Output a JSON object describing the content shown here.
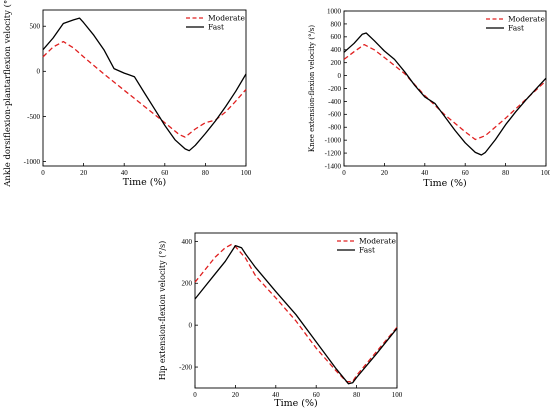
{
  "chart_data": [
    {
      "type": "line",
      "xlabel": "Time (%)",
      "ylabel": "Ankle dorsiflexion-plantarflexion velocity (°/s)",
      "xlim": [
        0,
        100
      ],
      "ylim": [
        -1050,
        680
      ],
      "xticks": [
        0,
        20,
        40,
        60,
        80,
        100
      ],
      "yticks": [
        500,
        0,
        -500,
        -1000
      ],
      "legend": "top-right",
      "series": [
        {
          "name": "Moderate",
          "color": "#e02020",
          "dash": true,
          "points": [
            [
              0,
              160
            ],
            [
              5,
              270
            ],
            [
              10,
              330
            ],
            [
              15,
              260
            ],
            [
              20,
              160
            ],
            [
              30,
              -30
            ],
            [
              40,
              -210
            ],
            [
              50,
              -390
            ],
            [
              60,
              -570
            ],
            [
              67,
              -700
            ],
            [
              70,
              -730
            ],
            [
              75,
              -640
            ],
            [
              80,
              -570
            ],
            [
              85,
              -540
            ],
            [
              90,
              -450
            ],
            [
              95,
              -330
            ],
            [
              100,
              -200
            ]
          ]
        },
        {
          "name": "Fast",
          "color": "#000000",
          "dash": false,
          "points": [
            [
              0,
              240
            ],
            [
              5,
              370
            ],
            [
              10,
              530
            ],
            [
              15,
              570
            ],
            [
              18,
              590
            ],
            [
              20,
              540
            ],
            [
              25,
              400
            ],
            [
              30,
              240
            ],
            [
              35,
              30
            ],
            [
              40,
              -20
            ],
            [
              45,
              -60
            ],
            [
              50,
              -240
            ],
            [
              55,
              -420
            ],
            [
              60,
              -600
            ],
            [
              65,
              -760
            ],
            [
              70,
              -860
            ],
            [
              72,
              -880
            ],
            [
              75,
              -820
            ],
            [
              80,
              -690
            ],
            [
              85,
              -550
            ],
            [
              90,
              -390
            ],
            [
              95,
              -220
            ],
            [
              100,
              -30
            ]
          ]
        }
      ]
    },
    {
      "type": "line",
      "xlabel": "Time (%)",
      "ylabel": "Knee extension-flexion velocity (°/s)",
      "xlim": [
        0,
        100
      ],
      "ylim": [
        -1400,
        1000
      ],
      "xticks": [
        0,
        20,
        40,
        60,
        80,
        100
      ],
      "yticks": [
        1000,
        800,
        600,
        400,
        200,
        0,
        -200,
        -400,
        -600,
        -800,
        -1000,
        -1200,
        -1400
      ],
      "legend": "top-right",
      "series": [
        {
          "name": "Moderate",
          "color": "#e02020",
          "dash": true,
          "points": [
            [
              0,
              250
            ],
            [
              5,
              370
            ],
            [
              10,
              480
            ],
            [
              15,
              400
            ],
            [
              20,
              280
            ],
            [
              30,
              30
            ],
            [
              40,
              -310
            ],
            [
              50,
              -610
            ],
            [
              60,
              -870
            ],
            [
              65,
              -990
            ],
            [
              70,
              -930
            ],
            [
              80,
              -660
            ],
            [
              90,
              -370
            ],
            [
              100,
              -80
            ]
          ]
        },
        {
          "name": "Fast",
          "color": "#000000",
          "dash": false,
          "points": [
            [
              0,
              360
            ],
            [
              5,
              500
            ],
            [
              9,
              640
            ],
            [
              11,
              660
            ],
            [
              15,
              540
            ],
            [
              20,
              380
            ],
            [
              25,
              250
            ],
            [
              30,
              60
            ],
            [
              35,
              -150
            ],
            [
              40,
              -330
            ],
            [
              45,
              -430
            ],
            [
              50,
              -640
            ],
            [
              55,
              -850
            ],
            [
              60,
              -1040
            ],
            [
              65,
              -1190
            ],
            [
              68,
              -1230
            ],
            [
              70,
              -1190
            ],
            [
              75,
              -990
            ],
            [
              80,
              -760
            ],
            [
              85,
              -560
            ],
            [
              90,
              -380
            ],
            [
              95,
              -210
            ],
            [
              100,
              -40
            ]
          ]
        }
      ]
    },
    {
      "type": "line",
      "xlabel": "Time (%)",
      "ylabel": "Hip extension-flexion velocity (°/s)",
      "xlim": [
        0,
        100
      ],
      "ylim": [
        -300,
        440
      ],
      "xticks": [
        0,
        20,
        40,
        60,
        80,
        100
      ],
      "yticks": [
        400,
        200,
        0,
        -200
      ],
      "legend": "top-right",
      "series": [
        {
          "name": "Moderate",
          "color": "#e02020",
          "dash": true,
          "points": [
            [
              0,
              205
            ],
            [
              5,
              265
            ],
            [
              10,
              325
            ],
            [
              15,
              370
            ],
            [
              18,
              385
            ],
            [
              20,
              375
            ],
            [
              25,
              320
            ],
            [
              30,
              235
            ],
            [
              40,
              130
            ],
            [
              50,
              20
            ],
            [
              60,
              -110
            ],
            [
              70,
              -220
            ],
            [
              75,
              -270
            ],
            [
              78,
              -270
            ],
            [
              80,
              -240
            ],
            [
              90,
              -125
            ],
            [
              100,
              -10
            ]
          ]
        },
        {
          "name": "Fast",
          "color": "#000000",
          "dash": false,
          "points": [
            [
              0,
              125
            ],
            [
              5,
              185
            ],
            [
              10,
              245
            ],
            [
              15,
              305
            ],
            [
              20,
              380
            ],
            [
              23,
              370
            ],
            [
              25,
              340
            ],
            [
              30,
              275
            ],
            [
              40,
              160
            ],
            [
              50,
              50
            ],
            [
              60,
              -80
            ],
            [
              70,
              -210
            ],
            [
              76,
              -280
            ],
            [
              78,
              -275
            ],
            [
              80,
              -250
            ],
            [
              90,
              -135
            ],
            [
              100,
              -15
            ]
          ]
        }
      ]
    }
  ]
}
